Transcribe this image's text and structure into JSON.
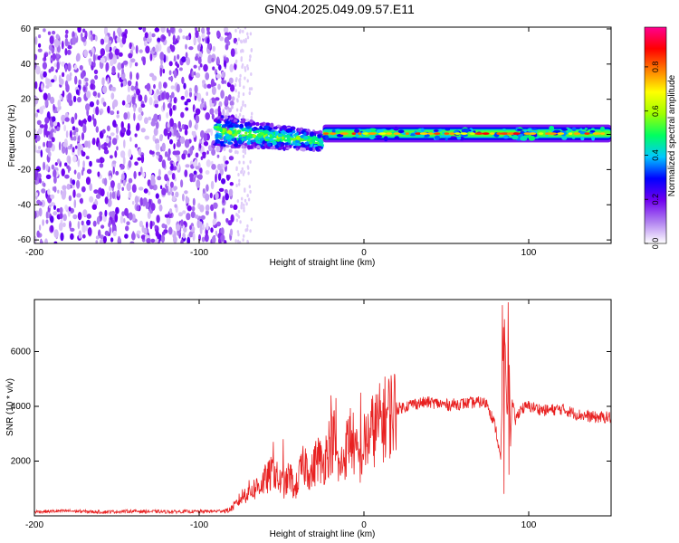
{
  "page": {
    "title": "GN04.2025.049.09.57.E11"
  },
  "chart_data": [
    {
      "type": "heatmap",
      "title": "GN04.2025.049.09.57.E11",
      "xlabel": "Height of straight line (km)",
      "ylabel": "Frequency (Hz)",
      "xlim": [
        -200,
        150
      ],
      "ylim": [
        -62,
        61
      ],
      "x_ticks": [
        -200,
        -100,
        0,
        100
      ],
      "y_ticks": [
        -60,
        -40,
        -20,
        0,
        20,
        40,
        60
      ],
      "colorbar": {
        "label": "Normalized spectral amplitude",
        "range": [
          0,
          0.98
        ],
        "ticks": [
          0.0,
          0.2,
          0.4,
          0.6,
          0.8
        ],
        "colors": [
          "#ffffff",
          "#b080f0",
          "#7000f0",
          "#0000ff",
          "#00c8ff",
          "#00ff60",
          "#a0ff00",
          "#ffff00",
          "#ff8000",
          "#ff0000",
          "#ff0090"
        ]
      },
      "regions": [
        {
          "name": "noise",
          "x_range": [
            -200,
            -78
          ],
          "freq_range": [
            -62,
            61
          ],
          "amplitude": 0.1
        },
        {
          "name": "transition",
          "x_range": [
            -90,
            -25
          ],
          "freq_range": [
            -15,
            12
          ],
          "amplitude": 0.4
        },
        {
          "name": "tone",
          "x_range": [
            -25,
            150
          ],
          "freq_center": 0.5,
          "freq_halfwidth": 3,
          "amplitude": 0.9
        }
      ]
    },
    {
      "type": "line",
      "xlabel": "Height of straight line (km)",
      "ylabel": "SNR (10 * v/v)",
      "xlim": [
        -200,
        150
      ],
      "ylim": [
        0,
        7900
      ],
      "x_ticks": [
        -200,
        -100,
        0,
        100
      ],
      "y_ticks": [
        2000,
        4000,
        6000
      ],
      "color": "#e82020",
      "series": [
        {
          "x": [
            -200,
            -180,
            -160,
            -140,
            -120,
            -100,
            -90,
            -82,
            -78,
            -74,
            -70,
            -66,
            -62,
            -58,
            -55,
            -52,
            -48,
            -45,
            -42,
            -38,
            -35,
            -32,
            -28,
            -25,
            -22,
            -18,
            -15,
            -12,
            -8,
            -5,
            -2,
            0,
            5,
            10,
            15,
            20,
            25,
            30,
            40,
            50,
            60,
            70,
            75,
            80,
            83,
            85,
            87,
            88,
            89,
            90,
            92,
            95,
            100,
            110,
            120,
            130,
            140,
            150
          ],
          "y": [
            150,
            180,
            140,
            170,
            150,
            160,
            170,
            200,
            400,
            700,
            900,
            1000,
            1200,
            1400,
            1600,
            1300,
            1100,
            1500,
            900,
            1700,
            1900,
            1500,
            2200,
            1800,
            2500,
            2800,
            1600,
            2200,
            3000,
            2300,
            2000,
            2600,
            3100,
            3400,
            3700,
            3900,
            4000,
            4100,
            4150,
            4050,
            4100,
            4150,
            4100,
            3200,
            2000,
            7500,
            3500,
            6200,
            2700,
            4100,
            3500,
            3900,
            4000,
            3850,
            3900,
            3700,
            3600,
            3600
          ]
        }
      ],
      "spikes": [
        {
          "x": -55,
          "y": 2700
        },
        {
          "x": -49,
          "y": 2800
        },
        {
          "x": -20,
          "y": 4400
        },
        {
          "x": -17,
          "y": 4300
        },
        {
          "x": -2,
          "y": 4500
        },
        {
          "x": 84,
          "y": 7700
        },
        {
          "x": 86,
          "y": 5500
        },
        {
          "x": 85,
          "y": 800
        },
        {
          "x": 88,
          "y": 1500
        },
        {
          "x": 87.5,
          "y": 7800
        }
      ]
    }
  ]
}
